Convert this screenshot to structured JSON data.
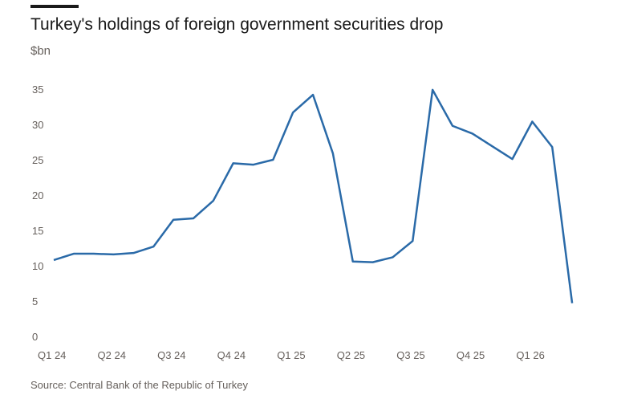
{
  "chart_data": {
    "type": "line",
    "title": "Turkey's holdings of foreign government securities drop",
    "ylabel": "$bn",
    "source": "Source: Central Bank of the Republic of Turkey",
    "ylim": [
      0,
      35
    ],
    "yticks": [
      0,
      5,
      10,
      15,
      20,
      25,
      30,
      35
    ],
    "xtick_labels": [
      "Q1 24",
      "Q2 24",
      "Q3 24",
      "Q4 24",
      "Q1 25",
      "Q2 25",
      "Q3 25",
      "Q4 25",
      "Q1 26"
    ],
    "grid": false,
    "line_color": "#2a6aa8",
    "series": [
      {
        "values": [
          10.8,
          11.7,
          11.7,
          11.6,
          11.8,
          12.7,
          16.5,
          16.7,
          19.2,
          24.5,
          24.3,
          25.0,
          31.7,
          34.2,
          25.9,
          10.6,
          10.5,
          11.2,
          13.5,
          34.9,
          29.8,
          28.7,
          26.9,
          25.1,
          30.4,
          26.8,
          4.7
        ]
      }
    ]
  }
}
